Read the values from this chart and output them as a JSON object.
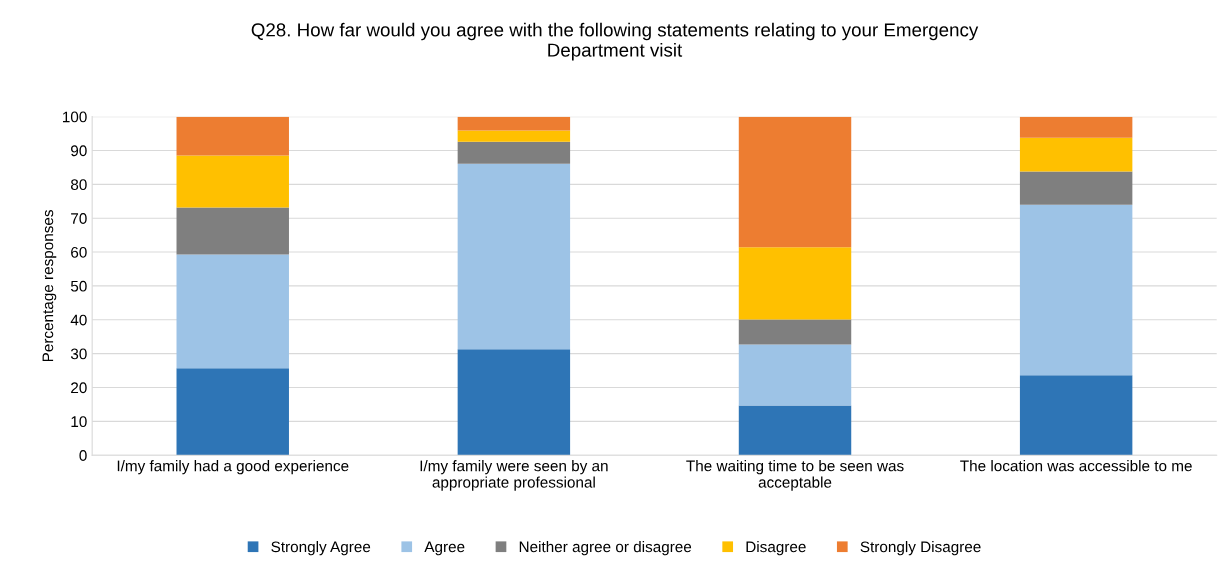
{
  "chart_data": {
    "type": "bar",
    "stacked": true,
    "title": "Q28. How far would you agree with the following statements relating to your Emergency\nDepartment visit",
    "ylabel": "Percentage responses",
    "categories": [
      "I/my family had a good experience",
      "I/my family were seen by an\nappropriate professional",
      "The waiting time to be seen was\nacceptable",
      "The location was accessible to me"
    ],
    "series": [
      {
        "name": "Strongly Agree",
        "color": "#2e75b6",
        "values": [
          25.7,
          31.3,
          14.7,
          23.6
        ]
      },
      {
        "name": "Agree",
        "color": "#9dc3e6",
        "values": [
          33.6,
          54.8,
          18.0,
          50.4
        ]
      },
      {
        "name": "Neither agree or disagree",
        "color": "#7f7f7f",
        "values": [
          13.9,
          6.5,
          7.4,
          9.8
        ]
      },
      {
        "name": "Disagree",
        "color": "#ffc000",
        "values": [
          15.3,
          3.3,
          21.3,
          10.0
        ]
      },
      {
        "name": "Strongly Disagree",
        "color": "#ed7d31",
        "values": [
          11.5,
          4.1,
          38.6,
          6.2
        ]
      }
    ],
    "ylim": [
      0,
      100
    ],
    "yticks": [
      0,
      10,
      20,
      30,
      40,
      50,
      60,
      70,
      80,
      90,
      100
    ],
    "grid": "y",
    "legend": "bottom"
  }
}
